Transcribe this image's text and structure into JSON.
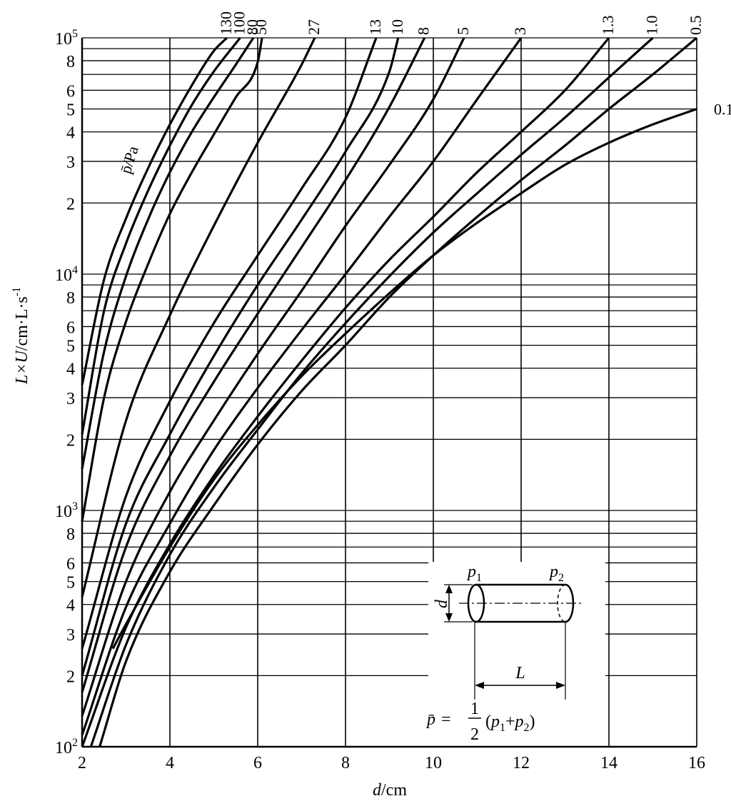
{
  "chart_data": {
    "type": "line",
    "title": "",
    "xlabel": {
      "var": "d",
      "unit": "/cm"
    },
    "ylabel": {
      "var": "L×U",
      "unit": "/cm·L·s",
      "exp": "-1"
    },
    "xlim": [
      2,
      16
    ],
    "ylim": [
      100,
      100000
    ],
    "yscale": "log",
    "grid": true,
    "x_ticks": [
      "2",
      "4",
      "6",
      "8",
      "10",
      "12",
      "14",
      "16"
    ],
    "y_ticks": [
      {
        "base": "10",
        "exp": "2",
        "value": 100
      },
      {
        "label": "2",
        "value": 200
      },
      {
        "label": "3",
        "value": 300
      },
      {
        "label": "4",
        "value": 400
      },
      {
        "label": "5",
        "value": 500
      },
      {
        "label": "6",
        "value": 600
      },
      {
        "label": "8",
        "value": 800
      },
      {
        "base": "10",
        "exp": "3",
        "value": 1000
      },
      {
        "label": "2",
        "value": 2000
      },
      {
        "label": "3",
        "value": 3000
      },
      {
        "label": "4",
        "value": 4000
      },
      {
        "label": "5",
        "value": 5000
      },
      {
        "label": "6",
        "value": 6000
      },
      {
        "label": "8",
        "value": 8000
      },
      {
        "base": "10",
        "exp": "4",
        "value": 10000
      },
      {
        "label": "2",
        "value": 20000
      },
      {
        "label": "3",
        "value": 30000
      },
      {
        "label": "4",
        "value": 40000
      },
      {
        "label": "5",
        "value": 50000
      },
      {
        "label": "6",
        "value": 60000
      },
      {
        "label": "8",
        "value": 80000
      },
      {
        "base": "10",
        "exp": "5",
        "value": 100000
      }
    ],
    "series_label": "p̄/Pa",
    "series": [
      {
        "name": "130",
        "label_pos": "top",
        "x": [
          2.0,
          2.5,
          3.0,
          3.5,
          4.0,
          4.5,
          5.0,
          5.3
        ],
        "y": [
          3400,
          9500,
          17200,
          28000,
          43000,
          63000,
          88000,
          100000
        ]
      },
      {
        "name": "100",
        "label_pos": "top",
        "x": [
          2.0,
          2.5,
          3.0,
          3.5,
          4.0,
          4.5,
          5.0,
          5.6
        ],
        "y": [
          2100,
          7000,
          13500,
          22500,
          35000,
          52000,
          72000,
          100000
        ]
      },
      {
        "name": "80",
        "label_pos": "top",
        "x": [
          2.0,
          2.5,
          3.0,
          3.5,
          4.0,
          4.5,
          5.0,
          5.5,
          5.9
        ],
        "y": [
          1500,
          4700,
          9800,
          17000,
          27000,
          40000,
          56000,
          77000,
          100000
        ]
      },
      {
        "name": "50",
        "label_pos": "top",
        "x": [
          2.0,
          2.5,
          3.0,
          3.5,
          4.0,
          4.5,
          5.0,
          5.5,
          6.0,
          6.1
        ],
        "y": [
          900,
          3000,
          6300,
          11000,
          18000,
          27000,
          39000,
          56000,
          79000,
          100000
        ]
      },
      {
        "name": "27",
        "label_pos": "top",
        "x": [
          2.0,
          3.0,
          4.0,
          5.0,
          6.0,
          7.0,
          7.3
        ],
        "y": [
          430,
          2400,
          6700,
          16000,
          36000,
          77000,
          100000
        ]
      },
      {
        "name": "13",
        "label_pos": "top",
        "x": [
          2.0,
          3.0,
          4.0,
          5.0,
          6.0,
          7.0,
          8.0,
          8.7
        ],
        "y": [
          260,
          1150,
          2900,
          6200,
          12000,
          23000,
          46000,
          100000
        ]
      },
      {
        "name": "10",
        "label_pos": "top",
        "x": [
          2.0,
          3.0,
          4.0,
          5.0,
          6.0,
          7.0,
          8.0,
          9.0,
          9.2
        ],
        "y": [
          200,
          880,
          2100,
          4500,
          9000,
          17000,
          33000,
          72000,
          100000
        ]
      },
      {
        "name": "8",
        "label_pos": "top",
        "x": [
          2.0,
          3.0,
          4.0,
          5.0,
          6.0,
          7.0,
          8.0,
          9.0,
          9.8
        ],
        "y": [
          170,
          700,
          1700,
          3500,
          6800,
          13000,
          25000,
          51000,
          100000
        ]
      },
      {
        "name": "5",
        "label_pos": "top",
        "x": [
          2.0,
          3.0,
          4.0,
          5.0,
          6.0,
          7.0,
          8.0,
          9.0,
          10.0,
          10.7
        ],
        "y": [
          135,
          500,
          1200,
          2400,
          4600,
          8500,
          16000,
          29000,
          55000,
          100000
        ]
      },
      {
        "name": "3",
        "label_pos": "top",
        "x": [
          2.0,
          3.0,
          4.0,
          5.0,
          6.0,
          7.0,
          8.0,
          9.0,
          10.0,
          11.0,
          12.0
        ],
        "y": [
          112,
          390,
          880,
          1800,
          3300,
          5800,
          10000,
          17500,
          30000,
          55000,
          100000
        ]
      },
      {
        "name": "1.3",
        "label_pos": "top",
        "x": [
          2.0,
          3.0,
          4.0,
          5.0,
          6.0,
          7.0,
          8.0,
          9.0,
          10.0,
          11.0,
          12.0,
          13.0,
          14.0
        ],
        "y": [
          100,
          320,
          720,
          1400,
          2500,
          4300,
          7200,
          11500,
          17500,
          27000,
          40000,
          60000,
          100000
        ]
      },
      {
        "name": "1.0",
        "label_pos": "top",
        "x": [
          2.2,
          3.0,
          4.0,
          5.0,
          6.0,
          7.0,
          8.0,
          9.0,
          10.0,
          11.0,
          12.0,
          13.0,
          14.0,
          15.0
        ],
        "y": [
          100,
          270,
          650,
          1250,
          2200,
          3800,
          6200,
          9800,
          15000,
          22000,
          32000,
          46000,
          68000,
          100000
        ]
      },
      {
        "name": "0.5",
        "label_pos": "top",
        "x": [
          2.4,
          3.0,
          4.0,
          5.0,
          6.0,
          7.0,
          8.0,
          9.0,
          10.0,
          11.0,
          12.0,
          13.0,
          14.0,
          15.0,
          16.0
        ],
        "y": [
          100,
          230,
          550,
          1050,
          1900,
          3200,
          5000,
          8000,
          12000,
          17500,
          25000,
          35000,
          50000,
          70000,
          100000
        ]
      },
      {
        "name": "0.1",
        "label_pos": "right",
        "x": [
          2.7,
          3.0,
          4.0,
          5.0,
          6.0,
          7.0,
          8.0,
          9.0,
          10.0,
          11.0,
          12.0,
          13.0,
          14.0,
          15.0,
          16.0
        ],
        "y": [
          260,
          330,
          700,
          1350,
          2300,
          3700,
          5600,
          8300,
          12000,
          16500,
          22000,
          29000,
          36000,
          43000,
          50000
        ]
      }
    ],
    "inset": {
      "p1": {
        "var": "p",
        "sub": "1"
      },
      "p2": {
        "var": "p",
        "sub": "2"
      },
      "d": "d",
      "L": "L",
      "formula": {
        "lhs": "p̄",
        "eq": "=",
        "num": "1",
        "den": "2",
        "open": "(",
        "a": "p",
        "a_sub": "1",
        "plus": "+",
        "b": "p",
        "b_sub": "2",
        "close": ")"
      }
    }
  }
}
